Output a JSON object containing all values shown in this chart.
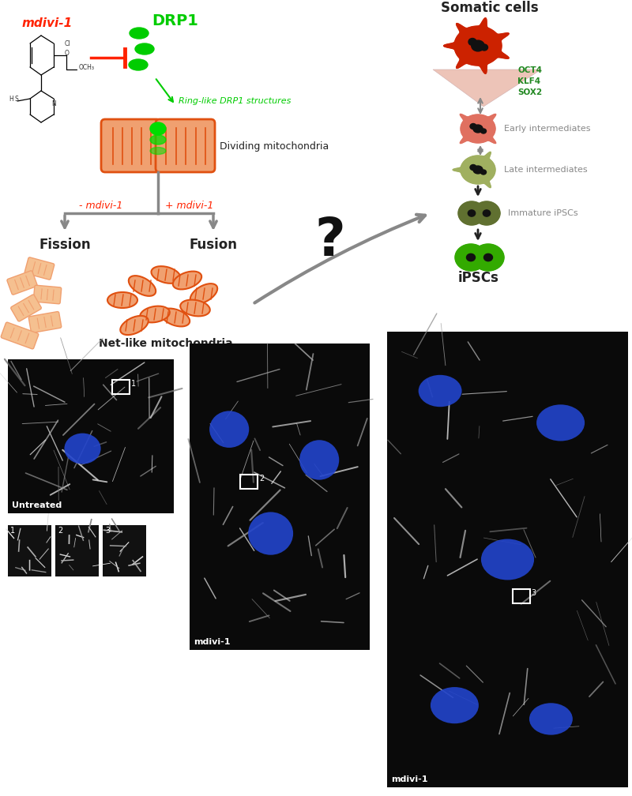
{
  "figure_width": 8.0,
  "figure_height": 10.08,
  "bg_color": "#ffffff",
  "orange": "#e05010",
  "light_orange": "#f0a070",
  "pale_orange": "#f5c090",
  "red": "#ff2200",
  "green": "#00cc00",
  "dark": "#222222",
  "gray": "#888888",
  "nucleus_blue": "#2244cc",
  "dark_bg": "#0a0a0a",
  "labels": {
    "somatic": "Somatic cells",
    "early": "Early intermediates",
    "late": "Late intermediates",
    "immature": "Immature iPSCs",
    "ipsc": "iPSCs",
    "dividing": "Dividing mitochondria",
    "net": "Net-like mitochondria",
    "fission": "Fission",
    "fusion": "Fusion",
    "minus_m": "- mdivi-1",
    "plus_m": "+ mdivi-1",
    "ring": "Ring-like DRP1 structures",
    "mdivi": "mdivi-1",
    "drp1": "DRP1",
    "untreated": "Untreated",
    "mdivi_label": "mdivi-1",
    "question": "?",
    "oct4": "OCT4\nKLF4\nSOX2"
  }
}
